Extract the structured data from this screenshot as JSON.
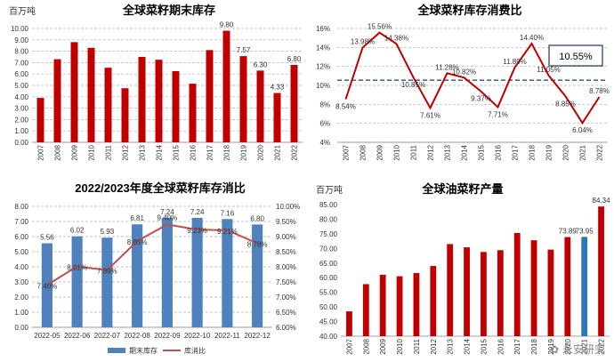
{
  "watermark": "永安研究",
  "chart_data": [
    {
      "id": "c1",
      "type": "bar",
      "title": "全球菜籽期末库存",
      "unit": "百万吨",
      "categories": [
        "2007",
        "2008",
        "2009",
        "2010",
        "2011",
        "2012",
        "2013",
        "2014",
        "2015",
        "2016",
        "2017",
        "2018",
        "2019",
        "2020",
        "2021",
        "2022"
      ],
      "values": [
        3.9,
        7.3,
        8.8,
        8.3,
        6.55,
        4.75,
        7.5,
        7.25,
        6.25,
        5.15,
        8.1,
        9.8,
        7.57,
        6.3,
        4.33,
        6.8
      ],
      "labels": {
        "11": "9.80",
        "12": "7.57",
        "13": "6.30",
        "14": "4.33",
        "15": "6.80"
      },
      "ylim": [
        0,
        10
      ],
      "yticks": [
        "0.00",
        "1.00",
        "2.00",
        "3.00",
        "4.00",
        "5.00",
        "6.00",
        "7.00",
        "8.00",
        "9.00",
        "10.00"
      ],
      "color": "#c00000"
    },
    {
      "id": "c2",
      "type": "line",
      "title": "全球菜籽库存消费比",
      "categories": [
        "2007",
        "2008",
        "2009",
        "2010",
        "2011",
        "2012",
        "2013",
        "2014",
        "2015",
        "2016",
        "2017",
        "2018",
        "2019",
        "2020",
        "2021",
        "2022"
      ],
      "values": [
        8.54,
        13.98,
        15.56,
        14.38,
        10.85,
        7.61,
        11.28,
        10.82,
        9.37,
        7.71,
        11.89,
        14.4,
        11.05,
        8.85,
        6.04,
        8.78
      ],
      "labels": [
        "8.54%",
        "13.98%",
        "15.56%",
        "14.38%",
        "10.85%",
        "7.61%",
        "11.28%",
        "10.82%",
        "9.37%",
        "7.71%",
        "11.89%",
        "14.40%",
        "11.05%",
        "8.85%",
        "6.04%",
        "8.78%"
      ],
      "ylim": [
        4,
        16
      ],
      "yticks": [
        "4%",
        "6%",
        "8%",
        "10%",
        "12%",
        "14%",
        "16%"
      ],
      "reference_value": 10.55,
      "reference_label": "10.55%",
      "color": "#c00000"
    },
    {
      "id": "c3",
      "type": "bar",
      "title": "2022/2023年度全球菜籽库存消比",
      "categories": [
        "2022-05",
        "2022-06",
        "2022-07",
        "2022-08",
        "2022-09",
        "2022-10",
        "2022-11",
        "2022-12"
      ],
      "series": [
        {
          "name": "期末库存",
          "type": "bar",
          "axis": "left",
          "color": "#4f81bd",
          "values": [
            5.56,
            6.02,
            5.93,
            6.81,
            7.24,
            7.24,
            7.16,
            6.8
          ],
          "labels": [
            "5.56",
            "6.02",
            "5.93",
            "6.81",
            "7.24",
            "7.24",
            "7.16",
            "6.80"
          ]
        },
        {
          "name": "库消比",
          "type": "line",
          "axis": "right",
          "color": "#c0504d",
          "values": [
            7.4,
            8.01,
            7.89,
            8.85,
            9.4,
            9.23,
            9.21,
            8.78
          ],
          "labels": [
            "7.40%",
            "8.01%",
            "7.89%",
            "8.85%",
            "9.40%",
            "9.23%",
            "9.21%",
            "8.78%"
          ]
        }
      ],
      "ylim_left": [
        0,
        8
      ],
      "yticks_left": [
        "0.00",
        "1.00",
        "2.00",
        "3.00",
        "4.00",
        "5.00",
        "6.00",
        "7.00",
        "8.00"
      ],
      "ylim_right": [
        6,
        10
      ],
      "yticks_right": [
        "6.00%",
        "6.50%",
        "7.00%",
        "7.50%",
        "8.00%",
        "8.50%",
        "9.00%",
        "9.50%",
        "10.00%"
      ],
      "legend": "bottom"
    },
    {
      "id": "c4",
      "type": "bar",
      "title": "全球油菜籽产量",
      "unit": "百万吨",
      "categories": [
        "2007",
        "2008",
        "2009",
        "2010",
        "2011",
        "2012",
        "2013",
        "2014",
        "2015",
        "2016",
        "2017",
        "2018",
        "2019",
        "2020",
        "2021",
        "2022"
      ],
      "values": [
        48.5,
        57.8,
        61.0,
        60.5,
        61.6,
        64.0,
        71.5,
        70.4,
        68.8,
        69.4,
        75.3,
        72.8,
        69.6,
        73.89,
        73.95,
        84.34
      ],
      "labels": {
        "13": "73.89",
        "14": "73.95",
        "15": "84.34"
      },
      "highlight_index": 14,
      "ylim": [
        40,
        85
      ],
      "yticks": [
        "40.00",
        "45.00",
        "50.00",
        "55.00",
        "60.00",
        "65.00",
        "70.00",
        "75.00",
        "80.00",
        "85.00"
      ],
      "color": "#c00000",
      "highlight_color": "#2e75b6"
    }
  ]
}
